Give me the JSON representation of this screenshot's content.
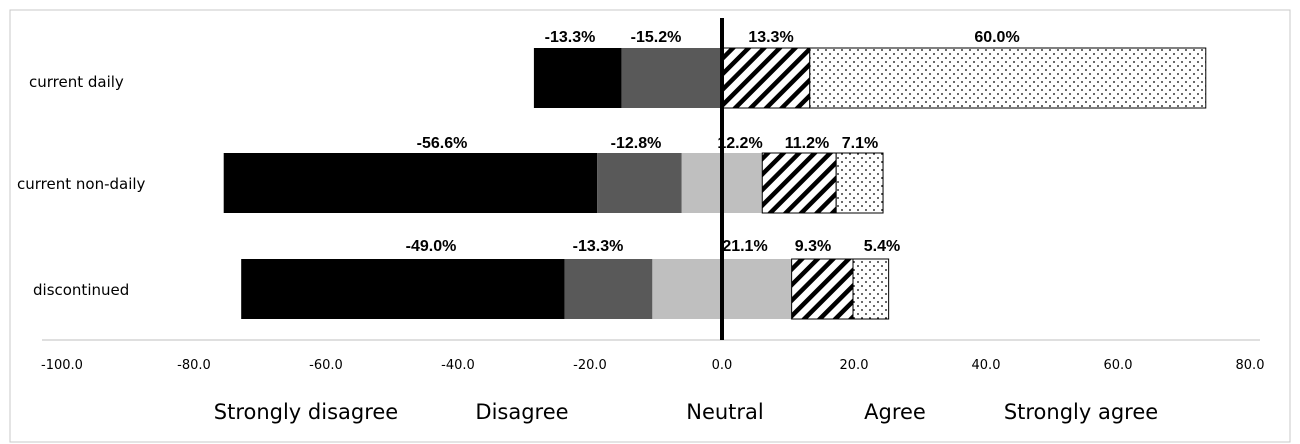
{
  "chart_data": {
    "type": "bar",
    "orientation": "horizontal",
    "stacked": true,
    "diverging": true,
    "categories": [
      "current daily",
      "current non-daily",
      "discontinued"
    ],
    "series": [
      {
        "name": "Strongly disagree",
        "color": "#000000",
        "pattern": "solid",
        "values": [
          -13.3,
          -56.6,
          -49.0
        ],
        "labels": [
          "-13.3%",
          "-56.6%",
          "-49.0%"
        ]
      },
      {
        "name": "Disagree",
        "color": "#595959",
        "pattern": "solid",
        "values": [
          -15.2,
          -12.8,
          -13.3
        ],
        "labels": [
          "-15.2%",
          "-12.8%",
          "-13.3%"
        ]
      },
      {
        "name": "Neutral",
        "color": "#bfbfbf",
        "pattern": "solid",
        "values": [
          0,
          12.2,
          21.1
        ],
        "labels": [
          "",
          "12.2%",
          "21.1%"
        ]
      },
      {
        "name": "Agree",
        "color": "#000000",
        "pattern": "diagonal-hatch",
        "values": [
          13.3,
          11.2,
          9.3
        ],
        "labels": [
          "13.3%",
          "11.2%",
          "9.3%"
        ]
      },
      {
        "name": "Strongly agree",
        "color": "#000000",
        "pattern": "dots",
        "values": [
          60.0,
          7.1,
          5.4
        ],
        "labels": [
          "60.0%",
          "7.1%",
          "5.4%"
        ]
      }
    ],
    "xlim": [
      -100,
      80
    ],
    "x_ticks": [
      -100,
      -80,
      -60,
      -40,
      -20,
      0,
      20,
      40,
      60,
      80
    ],
    "x_tick_labels": [
      "-100.0",
      "-80.0",
      "-60.0",
      "-40.0",
      "-20.0",
      "0.0",
      "20.0",
      "40.0",
      "60.0",
      "80.0"
    ],
    "legend_position": "bottom",
    "grid": false,
    "title": "",
    "xlabel": "",
    "ylabel": ""
  }
}
